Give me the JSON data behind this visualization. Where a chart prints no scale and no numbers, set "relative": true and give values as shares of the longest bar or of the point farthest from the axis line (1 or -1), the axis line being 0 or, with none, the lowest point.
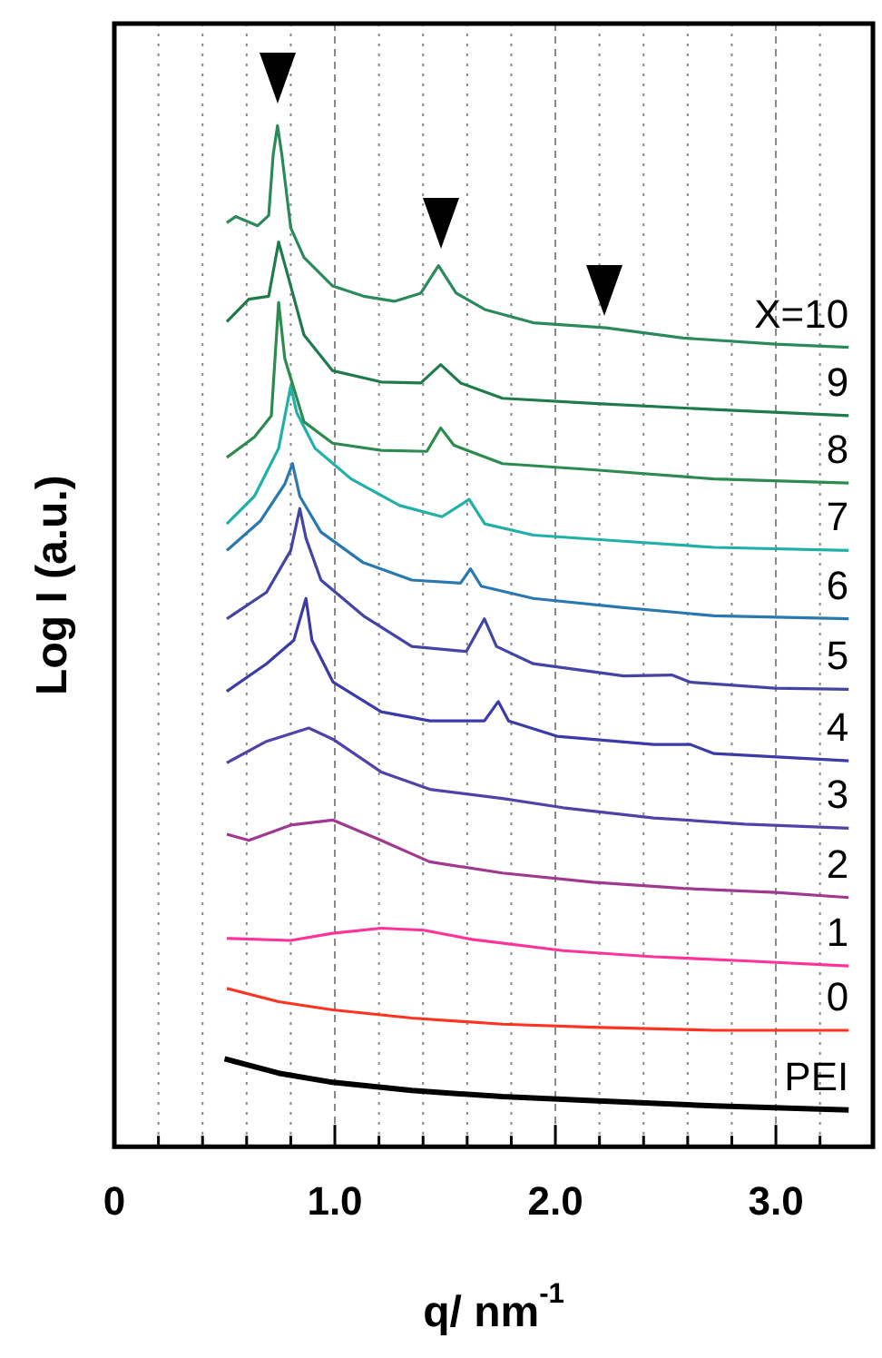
{
  "chart_data": {
    "type": "line",
    "xlabel": "q/ nm$^{-1}$",
    "ylabel": "Log I (a.u.)",
    "relative": true,
    "xlim": [
      0,
      3.44
    ],
    "xticks": [
      0,
      {
        "value": 0.2,
        "label": null
      },
      {
        "value": 0.4,
        "label": null
      },
      {
        "value": 0.6,
        "label": null
      },
      {
        "value": 0.8,
        "label": null
      },
      {
        "value": 1,
        "label": "1.0"
      },
      {
        "value": 1.2,
        "label": null
      },
      {
        "value": 1.4,
        "label": null
      },
      {
        "value": 1.6,
        "label": null
      },
      {
        "value": 1.8,
        "label": null
      },
      {
        "value": 2,
        "label": "2.0"
      },
      {
        "value": 2.2,
        "label": null
      },
      {
        "value": 2.4,
        "label": null
      },
      {
        "value": 2.6,
        "label": null
      },
      {
        "value": 2.8,
        "label": null
      },
      {
        "value": 3,
        "label": "3.0"
      },
      {
        "value": 3.2,
        "label": null
      }
    ],
    "grid": "x",
    "legend": false,
    "marker": "none",
    "line_style": "solid",
    "series": [
      {
        "name": "X=10",
        "color": "#2a8a5c",
        "x": [
          0.51,
          0.55,
          0.65,
          0.7,
          0.72,
          0.74,
          0.76,
          0.8,
          0.86,
          0.99,
          1.13,
          1.27,
          1.39,
          1.47,
          1.55,
          1.68,
          1.9,
          2.23,
          2.58,
          3.0,
          3.33
        ],
        "values": [
          0.905,
          0.911,
          0.902,
          0.912,
          0.971,
          1.0,
          0.971,
          0.9,
          0.871,
          0.843,
          0.833,
          0.828,
          0.836,
          0.863,
          0.836,
          0.82,
          0.807,
          0.802,
          0.792,
          0.786,
          0.783
        ]
      },
      {
        "name": "9",
        "color": "#1f7a4c",
        "x": [
          0.51,
          0.61,
          0.7,
          0.745,
          0.786,
          0.86,
          0.99,
          1.21,
          1.39,
          1.48,
          1.57,
          1.76,
          2.17,
          2.72,
          3.33
        ],
        "values": [
          0.808,
          0.83,
          0.833,
          0.886,
          0.854,
          0.795,
          0.76,
          0.749,
          0.748,
          0.766,
          0.748,
          0.733,
          0.728,
          0.722,
          0.716
        ]
      },
      {
        "name": "8",
        "color": "#2e8b50",
        "x": [
          0.51,
          0.635,
          0.712,
          0.745,
          0.773,
          0.86,
          0.99,
          1.21,
          1.417,
          1.48,
          1.54,
          1.76,
          2.17,
          2.72,
          3.33
        ],
        "values": [
          0.675,
          0.695,
          0.716,
          0.827,
          0.772,
          0.71,
          0.689,
          0.682,
          0.681,
          0.704,
          0.687,
          0.669,
          0.663,
          0.654,
          0.65
        ]
      },
      {
        "name": "7",
        "color": "#20b0a8",
        "x": [
          0.51,
          0.635,
          0.745,
          0.8,
          0.827,
          0.91,
          1.074,
          1.294,
          1.486,
          1.609,
          1.68,
          1.9,
          2.309,
          2.72,
          3.33
        ],
        "values": [
          0.61,
          0.637,
          0.684,
          0.745,
          0.719,
          0.684,
          0.654,
          0.628,
          0.617,
          0.634,
          0.61,
          0.599,
          0.593,
          0.587,
          0.584
        ]
      },
      {
        "name": "6",
        "color": "#2a78b0",
        "x": [
          0.51,
          0.663,
          0.773,
          0.808,
          0.841,
          0.937,
          1.129,
          1.349,
          1.57,
          1.615,
          1.664,
          1.9,
          2.31,
          2.72,
          3.33
        ],
        "values": [
          0.584,
          0.613,
          0.649,
          0.669,
          0.637,
          0.602,
          0.572,
          0.555,
          0.552,
          0.566,
          0.549,
          0.537,
          0.528,
          0.52,
          0.517
        ]
      },
      {
        "name": "5",
        "color": "#4444a4",
        "x": [
          0.51,
          0.69,
          0.8,
          0.841,
          0.869,
          0.937,
          1.129,
          1.349,
          1.596,
          1.678,
          1.733,
          1.9,
          2.31,
          2.528,
          2.611,
          2.995,
          3.33
        ],
        "values": [
          0.517,
          0.543,
          0.584,
          0.625,
          0.596,
          0.555,
          0.52,
          0.49,
          0.485,
          0.517,
          0.49,
          0.473,
          0.461,
          0.462,
          0.455,
          0.449,
          0.448
        ]
      },
      {
        "name": "4",
        "color": "#3a3aa8",
        "x": [
          0.51,
          0.69,
          0.814,
          0.869,
          0.896,
          0.992,
          1.21,
          1.431,
          1.678,
          1.741,
          1.788,
          2.007,
          2.446,
          2.611,
          2.72,
          3.33
        ],
        "values": [
          0.446,
          0.473,
          0.496,
          0.537,
          0.496,
          0.455,
          0.426,
          0.417,
          0.417,
          0.436,
          0.417,
          0.402,
          0.394,
          0.394,
          0.385,
          0.378
        ]
      },
      {
        "name": "3",
        "color": "#5440a8",
        "x": [
          0.51,
          0.69,
          0.882,
          0.992,
          1.21,
          1.431,
          1.76,
          2.035,
          2.446,
          2.858,
          3.33
        ],
        "values": [
          0.376,
          0.397,
          0.41,
          0.399,
          0.367,
          0.35,
          0.341,
          0.332,
          0.322,
          0.316,
          0.312
        ]
      },
      {
        "name": "2",
        "color": "#a03890",
        "x": [
          0.51,
          0.61,
          0.8,
          0.99,
          1.21,
          1.43,
          1.76,
          2.17,
          2.58,
          3.0,
          3.33
        ],
        "values": [
          0.306,
          0.3,
          0.315,
          0.32,
          0.3,
          0.279,
          0.268,
          0.259,
          0.253,
          0.249,
          0.244
        ]
      },
      {
        "name": "1",
        "color": "#ff3399",
        "x": [
          0.51,
          0.8,
          0.99,
          1.21,
          1.404,
          1.623,
          2.035,
          2.446,
          2.858,
          3.33
        ],
        "values": [
          0.204,
          0.202,
          0.209,
          0.214,
          0.212,
          0.203,
          0.192,
          0.186,
          0.182,
          0.177
        ]
      },
      {
        "name": "0",
        "color": "#ff3322",
        "x": [
          0.51,
          0.745,
          0.99,
          1.349,
          1.76,
          2.17,
          2.72,
          3.33
        ],
        "values": [
          0.155,
          0.142,
          0.134,
          0.126,
          0.12,
          0.117,
          0.114,
          0.114
        ]
      },
      {
        "name": "PEI",
        "color": "#000000",
        "x": [
          0.5,
          0.745,
          0.99,
          1.349,
          1.76,
          2.17,
          2.72,
          3.33
        ],
        "values": [
          0.086,
          0.072,
          0.063,
          0.055,
          0.049,
          0.045,
          0.04,
          0.036
        ]
      }
    ]
  }
}
